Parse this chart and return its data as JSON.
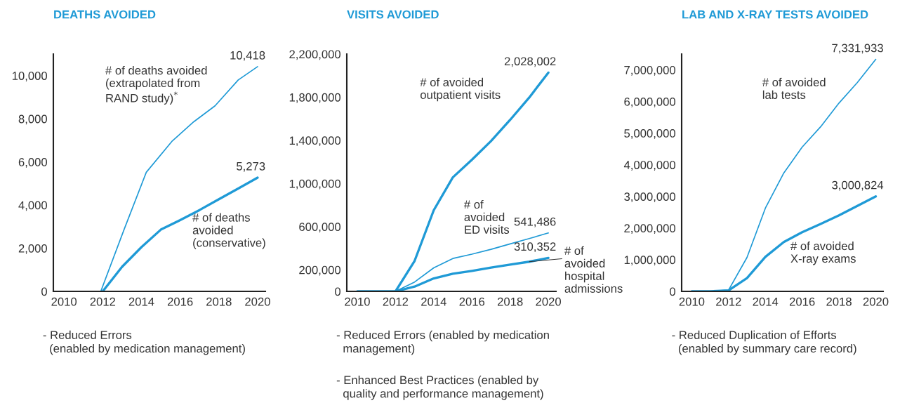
{
  "chart_data": [
    {
      "type": "line",
      "title": "DEATHS AVOIDED",
      "xlim": [
        2009.45,
        2020.4
      ],
      "xticks": [
        2010,
        2012,
        2014,
        2016,
        2018,
        2020
      ],
      "ylim": [
        0,
        11000
      ],
      "yticks": [
        {
          "value": 0,
          "label": "0"
        },
        {
          "value": 2000,
          "label": "2,000"
        },
        {
          "value": 4000,
          "label": "4,000"
        },
        {
          "value": 6000,
          "label": "6,000"
        },
        {
          "value": 8000,
          "label": "8,000"
        },
        {
          "value": 10000,
          "label": "10,000"
        }
      ],
      "grid": false,
      "legend": false,
      "series": [
        {
          "name": "# of deaths avoided\n(extrapolated from\nRAND study)$^{*}$",
          "color": "#1f9ad6",
          "x": [
            2011.9,
            2013.1,
            2014.25,
            2015.6,
            2016.7,
            2017.8,
            2019,
            2020
          ],
          "values": [
            0,
            2860,
            5520,
            6980,
            7860,
            8600,
            9800,
            10418
          ],
          "value_labels": [
            null,
            null,
            null,
            null,
            null,
            null,
            null,
            "10,418"
          ]
        },
        {
          "name": "# of deaths\navoided\n(conservative)",
          "color": "#1f9ad6",
          "x": [
            2012,
            2013,
            2014,
            2015,
            2016,
            2017,
            2018,
            2019,
            2020
          ],
          "values": [
            0,
            1140,
            2050,
            2860,
            3300,
            3770,
            4270,
            4770,
            5273
          ],
          "value_labels": [
            null,
            null,
            null,
            null,
            null,
            null,
            null,
            null,
            "5,273"
          ]
        }
      ],
      "annotations": [
        "- Reduced Errors\n  (enabled by medication management)"
      ]
    },
    {
      "type": "line",
      "title": "VISITS AVOIDED",
      "xlim": [
        2009.45,
        2020.4
      ],
      "xticks": [
        2010,
        2012,
        2014,
        2016,
        2018,
        2020
      ],
      "ylim": [
        0,
        2200000
      ],
      "yticks": [
        {
          "value": 0,
          "label": "0"
        },
        {
          "value": 200000,
          "label": "200,000"
        },
        {
          "value": 600000,
          "label": "600,000"
        },
        {
          "value": 1000000,
          "label": "1,000,000"
        },
        {
          "value": 1400000,
          "label": "1,400,000"
        },
        {
          "value": 1800000,
          "label": "1,800,000"
        },
        {
          "value": 2200000,
          "label": "2,200,000"
        }
      ],
      "grid": false,
      "legend": false,
      "series": [
        {
          "name": "# of avoided\noutpatient visits",
          "color": "#1f9ad6",
          "x": [
            2010,
            2011,
            2012,
            2013,
            2014,
            2015,
            2016,
            2017,
            2018,
            2019,
            2020
          ],
          "values": [
            0,
            0,
            0,
            283000,
            752000,
            1057000,
            1220000,
            1394000,
            1590000,
            1797000,
            2028002
          ],
          "value_labels": [
            null,
            null,
            null,
            null,
            null,
            null,
            null,
            null,
            null,
            null,
            "2,028,002"
          ]
        },
        {
          "name": "# of\navoided\nED visits",
          "color": "#1f9ad6",
          "x": [
            2012,
            2013,
            2014,
            2015,
            2016,
            2017,
            2018,
            2019,
            2020
          ],
          "values": [
            0,
            87000,
            218000,
            305000,
            345000,
            390000,
            440000,
            490000,
            541486
          ],
          "value_labels": [
            null,
            null,
            null,
            null,
            null,
            null,
            null,
            null,
            "541,486"
          ]
        },
        {
          "name": "# of\navoided\nhospital\nadmissions",
          "color": "#1f9ad6",
          "x": [
            2012,
            2013,
            2014,
            2015,
            2016,
            2017,
            2018,
            2019,
            2020
          ],
          "values": [
            0,
            44000,
            120000,
            163000,
            190000,
            220000,
            248000,
            275000,
            310352
          ],
          "value_labels": [
            null,
            null,
            null,
            null,
            null,
            null,
            null,
            null,
            "310,352"
          ]
        }
      ],
      "annotations": [
        "- Reduced Errors (enabled by medication\n  management)",
        "- Enhanced Best Practices (enabled by\n  quality and performance management)"
      ]
    },
    {
      "type": "line",
      "title": "LAB AND X-RAY TESTS AVOIDED",
      "xlim": [
        2009.45,
        2020.4
      ],
      "xticks": [
        2010,
        2012,
        2014,
        2016,
        2018,
        2020
      ],
      "ylim": [
        0,
        7500000
      ],
      "yticks": [
        {
          "value": 0,
          "label": "0"
        },
        {
          "value": 1000000,
          "label": "1,000,000"
        },
        {
          "value": 2000000,
          "label": "2,000,000"
        },
        {
          "value": 3000000,
          "label": "3,000,000"
        },
        {
          "value": 4000000,
          "label": "4,000,000"
        },
        {
          "value": 5000000,
          "label": "5,000,000"
        },
        {
          "value": 6000000,
          "label": "6,000,000"
        },
        {
          "value": 7000000,
          "label": "7,000,000"
        }
      ],
      "grid": false,
      "legend": false,
      "series": [
        {
          "name": "# of avoided\nlab tests",
          "color": "#1f9ad6",
          "x": [
            2010,
            2011,
            2012,
            2013,
            2014,
            2015,
            2016,
            2017,
            2018,
            2019,
            2020
          ],
          "values": [
            0,
            0,
            40000,
            1070000,
            2630000,
            3740000,
            4560000,
            5200000,
            5950000,
            6600000,
            7331933
          ],
          "value_labels": [
            null,
            null,
            null,
            null,
            null,
            null,
            null,
            null,
            null,
            null,
            "7,331,933"
          ]
        },
        {
          "name": "# of avoided\nX-ray exams",
          "color": "#1f9ad6",
          "x": [
            2010,
            2011,
            2012,
            2013,
            2014,
            2015,
            2016,
            2017,
            2018,
            2019,
            2020
          ],
          "values": [
            0,
            0,
            30000,
            420000,
            1090000,
            1560000,
            1870000,
            2130000,
            2400000,
            2700000,
            3000824
          ],
          "value_labels": [
            null,
            null,
            null,
            null,
            null,
            null,
            null,
            null,
            null,
            null,
            "3,000,824"
          ]
        }
      ],
      "annotations": [
        "- Reduced Duplication of Efforts\n  (enabled by summary care record)"
      ]
    }
  ]
}
